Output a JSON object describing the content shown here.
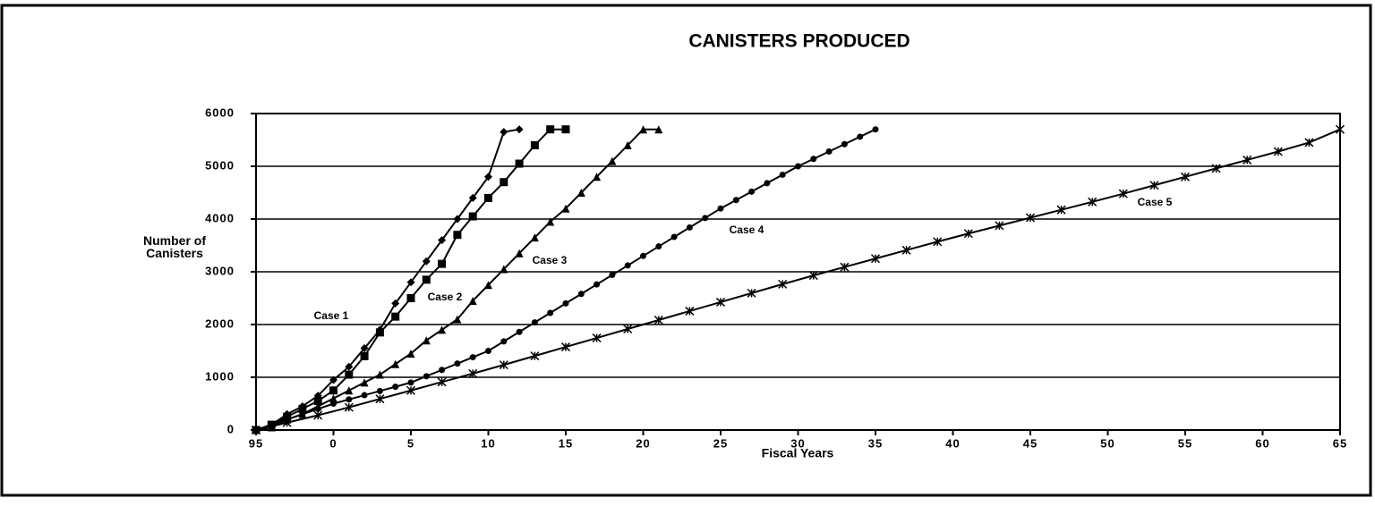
{
  "chart_data": {
    "type": "line",
    "title": "CANISTERS PRODUCED",
    "x_label": "Fiscal Years",
    "y_label": "Number of Canisters",
    "xlim": [
      1995,
      2065
    ],
    "xticks": [
      {
        "value": 1995,
        "label": "95"
      },
      {
        "value": 2000,
        "label": "0"
      },
      {
        "value": 2005,
        "label": "5"
      },
      {
        "value": 2010,
        "label": "10"
      },
      {
        "value": 2015,
        "label": "15"
      },
      {
        "value": 2020,
        "label": "20"
      },
      {
        "value": 2025,
        "label": "25"
      },
      {
        "value": 2030,
        "label": "30"
      },
      {
        "value": 2035,
        "label": "35"
      },
      {
        "value": 2040,
        "label": "40"
      },
      {
        "value": 2045,
        "label": "45"
      },
      {
        "value": 2050,
        "label": "50"
      },
      {
        "value": 2055,
        "label": "55"
      },
      {
        "value": 2060,
        "label": "60"
      },
      {
        "value": 2065,
        "label": "65"
      }
    ],
    "ylim": [
      0,
      6000
    ],
    "yticks": [
      0,
      1000,
      2000,
      3000,
      4000,
      5000,
      6000
    ],
    "grid": true,
    "series": [
      {
        "name": "Case 1",
        "color": "#000000",
        "marker": "diamond",
        "x": [
          1995,
          1996,
          1997,
          1998,
          1999,
          2000,
          2001,
          2002,
          2003,
          2004,
          2005,
          2006,
          2007,
          2008,
          2009,
          2010,
          2011,
          2012
        ],
        "values": [
          0,
          100,
          300,
          450,
          650,
          950,
          1200,
          1550,
          1900,
          2400,
          2800,
          3200,
          3600,
          4000,
          4400,
          4800,
          5650,
          5700
        ]
      },
      {
        "name": "Case 2",
        "color": "#000000",
        "marker": "square",
        "x": [
          1995,
          1996,
          1997,
          1998,
          1999,
          2000,
          2001,
          2002,
          2003,
          2004,
          2005,
          2006,
          2007,
          2008,
          2009,
          2010,
          2011,
          2012,
          2013,
          2014,
          2015
        ],
        "values": [
          0,
          100,
          250,
          400,
          550,
          750,
          1050,
          1400,
          1850,
          2150,
          2500,
          2850,
          3150,
          3700,
          4050,
          4400,
          4700,
          5050,
          5400,
          5700,
          5700
        ]
      },
      {
        "name": "Case 3",
        "color": "#000000",
        "marker": "triangle",
        "x": [
          1995,
          1996,
          1997,
          1998,
          1999,
          2000,
          2001,
          2002,
          2003,
          2004,
          2005,
          2006,
          2007,
          2008,
          2009,
          2010,
          2011,
          2012,
          2013,
          2014,
          2015,
          2016,
          2017,
          2018,
          2019,
          2020,
          2021
        ],
        "values": [
          0,
          50,
          200,
          300,
          450,
          600,
          750,
          900,
          1050,
          1250,
          1450,
          1700,
          1900,
          2100,
          2450,
          2750,
          3050,
          3350,
          3650,
          3950,
          4200,
          4500,
          4800,
          5100,
          5400,
          5700,
          5700
        ]
      },
      {
        "name": "Case 4",
        "color": "#000000",
        "marker": "circle",
        "x": [
          1995,
          1996,
          1997,
          1998,
          1999,
          2000,
          2001,
          2002,
          2003,
          2004,
          2005,
          2006,
          2007,
          2008,
          2009,
          2010,
          2011,
          2012,
          2013,
          2014,
          2015,
          2016,
          2017,
          2018,
          2019,
          2020,
          2021,
          2022,
          2023,
          2024,
          2025,
          2026,
          2027,
          2028,
          2029,
          2030,
          2031,
          2032,
          2033,
          2034,
          2035
        ],
        "values": [
          0,
          100,
          200,
          300,
          400,
          500,
          580,
          660,
          740,
          820,
          900,
          1020,
          1140,
          1260,
          1380,
          1500,
          1680,
          1860,
          2040,
          2220,
          2400,
          2580,
          2760,
          2940,
          3120,
          3300,
          3480,
          3660,
          3840,
          4020,
          4200,
          4360,
          4520,
          4680,
          4840,
          5000,
          5140,
          5280,
          5420,
          5560,
          5700
        ]
      },
      {
        "name": "Case 5",
        "color": "#000000",
        "marker": "star",
        "x": [
          1995,
          1997,
          1999,
          2001,
          2003,
          2005,
          2007,
          2009,
          2011,
          2013,
          2015,
          2017,
          2019,
          2021,
          2023,
          2025,
          2027,
          2029,
          2031,
          2033,
          2035,
          2037,
          2039,
          2041,
          2043,
          2045,
          2047,
          2049,
          2051,
          2053,
          2055,
          2057,
          2059,
          2061,
          2063,
          2065
        ],
        "values": [
          0,
          140,
          280,
          430,
          590,
          750,
          910,
          1070,
          1235,
          1405,
          1575,
          1745,
          1915,
          2085,
          2255,
          2425,
          2595,
          2765,
          2930,
          3090,
          3250,
          3410,
          3570,
          3725,
          3875,
          4025,
          4175,
          4325,
          4480,
          4640,
          4800,
          4960,
          5120,
          5280,
          5450,
          5700
        ]
      }
    ]
  }
}
